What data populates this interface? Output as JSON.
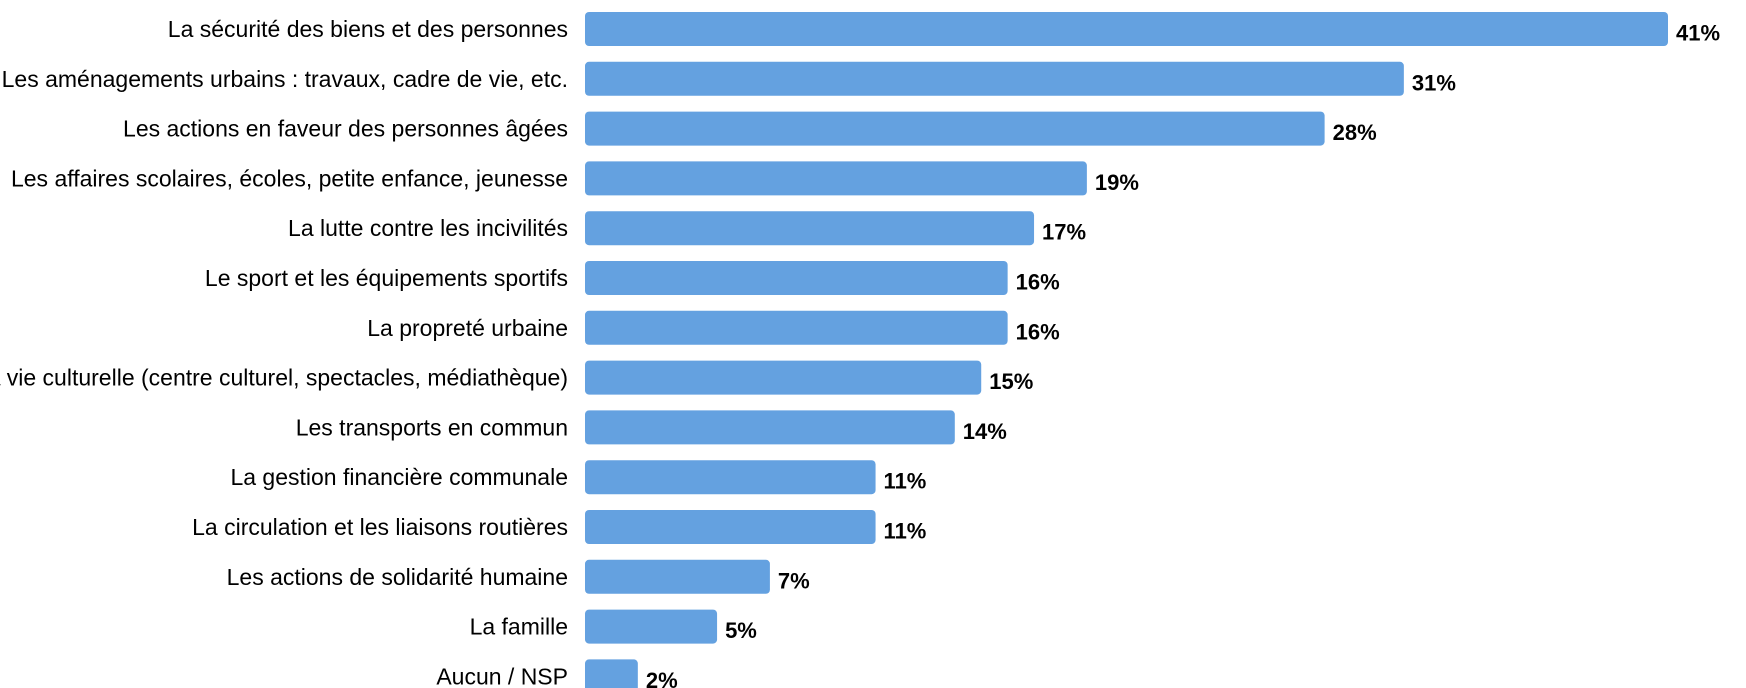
{
  "chart_data": {
    "type": "bar",
    "orientation": "horizontal",
    "categories": [
      "La sécurité des biens et des personnes",
      "Les aménagements urbains : travaux, cadre de vie, etc.",
      "Les actions en faveur des personnes âgées",
      "Les affaires scolaires, écoles, petite enfance, jeunesse",
      "La lutte contre les incivilités",
      "Le sport et les équipements sportifs",
      "La propreté urbaine",
      "La vie culturelle (centre culturel, spectacles, médiathèque)",
      "Les transports en commun",
      "La gestion financière communale",
      "La circulation et les liaisons routières",
      "Les actions de solidarité humaine",
      "La famille",
      "Aucun / NSP"
    ],
    "values": [
      41,
      31,
      28,
      19,
      17,
      16,
      16,
      15,
      14,
      11,
      11,
      7,
      5,
      2
    ],
    "value_labels": [
      "41%",
      "31%",
      "28%",
      "19%",
      "17%",
      "16%",
      "16%",
      "15%",
      "14%",
      "11%",
      "11%",
      "7%",
      "5%",
      "2%"
    ],
    "title": "",
    "xlabel": "",
    "ylabel": "",
    "xlim": [
      0,
      41
    ],
    "grid": false,
    "legend": "none",
    "colors": {
      "bar": "#64a1e0",
      "text": "#000000",
      "background": "#ffffff"
    }
  }
}
